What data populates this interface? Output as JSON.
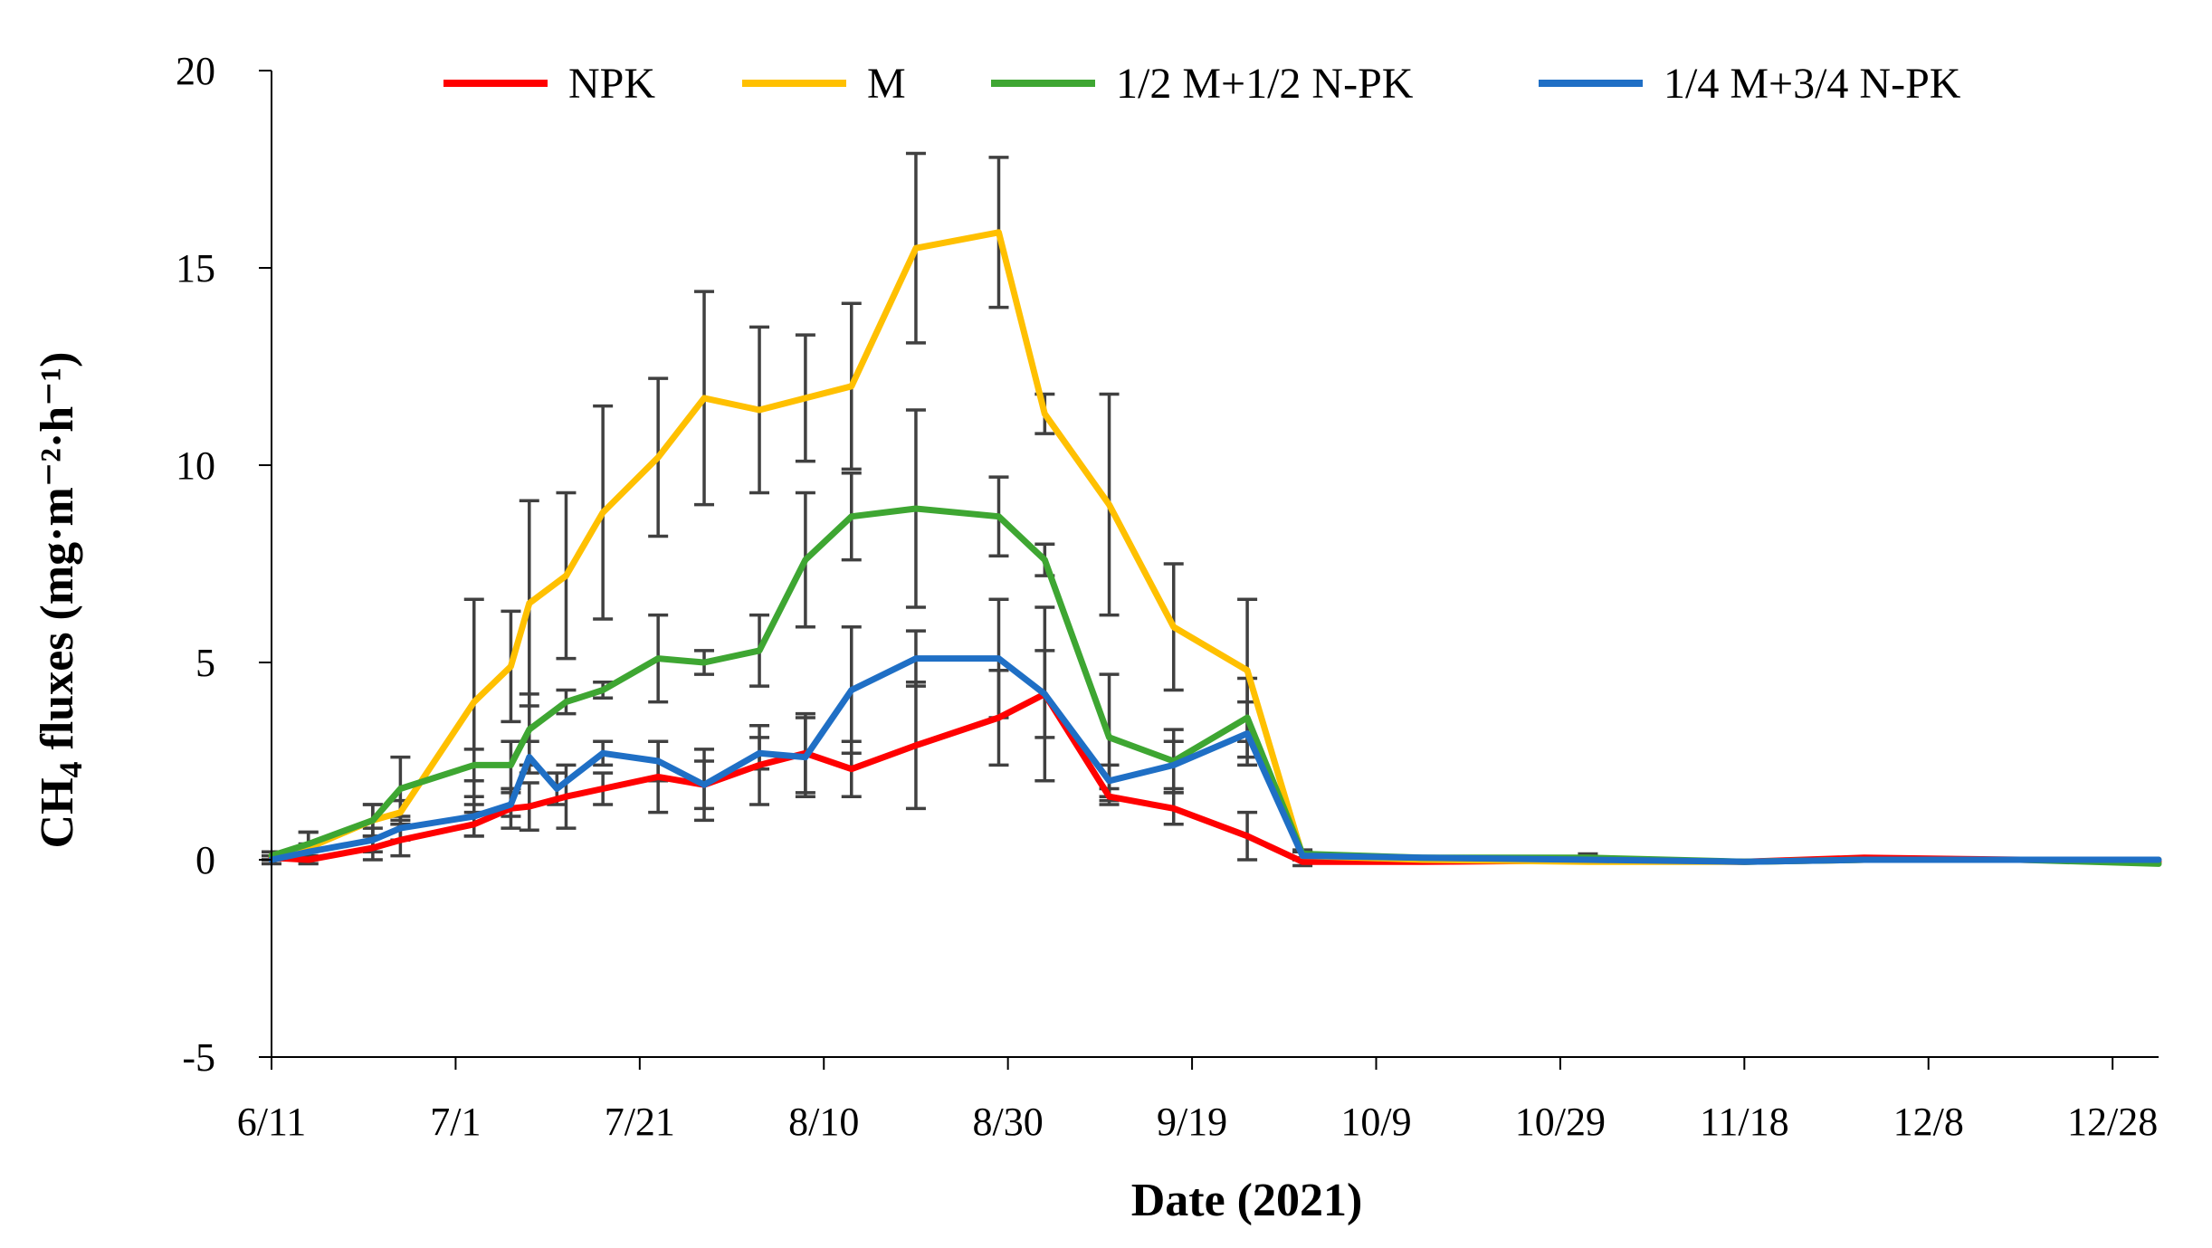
{
  "chart_data": {
    "type": "line",
    "title": "",
    "xlabel": "Date (2021)",
    "ylabel_base": "CH",
    "ylabel_sub": "4",
    "ylabel_rest": " fluxes (mg·m⁻²·h⁻¹)",
    "x_start_day": 0,
    "x_end_day": 205,
    "ylim": [
      -5,
      20
    ],
    "yticks": [
      -5,
      0,
      5,
      10,
      15,
      20
    ],
    "xticks": [
      {
        "day": 0,
        "label": "6/11"
      },
      {
        "day": 20,
        "label": "7/1"
      },
      {
        "day": 40,
        "label": "7/21"
      },
      {
        "day": 60,
        "label": "8/10"
      },
      {
        "day": 80,
        "label": "8/30"
      },
      {
        "day": 100,
        "label": "9/19"
      },
      {
        "day": 120,
        "label": "10/9"
      },
      {
        "day": 140,
        "label": "10/29"
      },
      {
        "day": 160,
        "label": "11/18"
      },
      {
        "day": 180,
        "label": "12/8"
      },
      {
        "day": 200,
        "label": "12/28"
      }
    ],
    "legend_position": "top",
    "series": [
      {
        "name": "NPK",
        "color": "#ff0000",
        "points": [
          {
            "day": 0,
            "y": 0.05,
            "err": 0.15
          },
          {
            "day": 4,
            "y": 0.0,
            "err": 0.1
          },
          {
            "day": 11,
            "y": 0.3,
            "err": 0.3
          },
          {
            "day": 14,
            "y": 0.5,
            "err": 0.4
          },
          {
            "day": 22,
            "y": 0.9,
            "err": 0.3
          },
          {
            "day": 26,
            "y": 1.3,
            "err": 0.5
          },
          {
            "day": 28,
            "y": 1.35,
            "err": 0.6
          },
          {
            "day": 32,
            "y": 1.6,
            "err": 0.8
          },
          {
            "day": 36,
            "y": 1.8,
            "err": 0.4
          },
          {
            "day": 42,
            "y": 2.1,
            "err": 0.9
          },
          {
            "day": 47,
            "y": 1.9,
            "err": 0.9
          },
          {
            "day": 53,
            "y": 2.4,
            "err": 1.0
          },
          {
            "day": 58,
            "y": 2.7,
            "err": 1.0
          },
          {
            "day": 63,
            "y": 2.3,
            "err": 0.7
          },
          {
            "day": 70,
            "y": 2.9,
            "err": 1.6
          },
          {
            "day": 79,
            "y": 3.6,
            "err": 1.2
          },
          {
            "day": 84,
            "y": 4.2,
            "err": 2.2
          },
          {
            "day": 91,
            "y": 1.6,
            "err": 0.2
          },
          {
            "day": 98,
            "y": 1.3,
            "err": 0.4
          },
          {
            "day": 106,
            "y": 0.6,
            "err": 0.6
          },
          {
            "day": 112,
            "y": -0.05,
            "err": 0.1
          },
          {
            "day": 125,
            "y": -0.05,
            "err": 0.05
          },
          {
            "day": 143,
            "y": -0.02,
            "err": 0.05
          },
          {
            "day": 160,
            "y": -0.05,
            "err": 0.05
          },
          {
            "day": 173,
            "y": 0.05,
            "err": 0.05
          },
          {
            "day": 190,
            "y": 0.0,
            "err": 0.05
          },
          {
            "day": 205,
            "y": -0.05,
            "err": 0.05
          }
        ]
      },
      {
        "name": "M",
        "color": "#ffc000",
        "points": [
          {
            "day": 0,
            "y": 0.1,
            "err": 0.1
          },
          {
            "day": 4,
            "y": 0.3,
            "err": 0.4
          },
          {
            "day": 11,
            "y": 1.0,
            "err": 0.4
          },
          {
            "day": 14,
            "y": 1.2,
            "err": 0.3
          },
          {
            "day": 22,
            "y": 4.0,
            "err": 2.6
          },
          {
            "day": 26,
            "y": 4.9,
            "err": 1.4
          },
          {
            "day": 28,
            "y": 6.5,
            "err": 2.6
          },
          {
            "day": 32,
            "y": 7.2,
            "err": 2.1
          },
          {
            "day": 36,
            "y": 8.8,
            "err": 2.7
          },
          {
            "day": 42,
            "y": 10.2,
            "err": 2.0
          },
          {
            "day": 47,
            "y": 11.7,
            "err": 2.7
          },
          {
            "day": 53,
            "y": 11.4,
            "err": 2.1
          },
          {
            "day": 58,
            "y": 11.7,
            "err": 1.6
          },
          {
            "day": 63,
            "y": 12.0,
            "err": 2.1
          },
          {
            "day": 70,
            "y": 15.5,
            "err": 2.4
          },
          {
            "day": 79,
            "y": 15.9,
            "err": 1.9
          },
          {
            "day": 84,
            "y": 11.3,
            "err": 0.5
          },
          {
            "day": 91,
            "y": 9.0,
            "err": 2.8
          },
          {
            "day": 98,
            "y": 5.9,
            "err": 1.6
          },
          {
            "day": 106,
            "y": 4.8,
            "err": 1.8
          },
          {
            "day": 112,
            "y": 0.1,
            "err": 0.1
          },
          {
            "day": 125,
            "y": 0.0,
            "err": 0.05
          },
          {
            "day": 143,
            "y": -0.05,
            "err": 0.05
          },
          {
            "day": 160,
            "y": -0.05,
            "err": 0.05
          },
          {
            "day": 173,
            "y": 0.0,
            "err": 0.05
          },
          {
            "day": 190,
            "y": 0.0,
            "err": 0.05
          },
          {
            "day": 205,
            "y": 0.0,
            "err": 0.05
          }
        ]
      },
      {
        "name": "1/2 M+1/2 N-PK",
        "color": "#3ea632",
        "points": [
          {
            "day": 0,
            "y": 0.1,
            "err": 0.1
          },
          {
            "day": 4,
            "y": 0.4,
            "err": 0.3
          },
          {
            "day": 11,
            "y": 1.0,
            "err": 0.4
          },
          {
            "day": 14,
            "y": 1.8,
            "err": 0.8
          },
          {
            "day": 22,
            "y": 2.4,
            "err": 0.4
          },
          {
            "day": 26,
            "y": 2.4,
            "err": 0.6
          },
          {
            "day": 28,
            "y": 3.3,
            "err": 0.9
          },
          {
            "day": 32,
            "y": 4.0,
            "err": 0.3
          },
          {
            "day": 36,
            "y": 4.3,
            "err": 0.2
          },
          {
            "day": 42,
            "y": 5.1,
            "err": 1.1
          },
          {
            "day": 47,
            "y": 5.0,
            "err": 0.3
          },
          {
            "day": 53,
            "y": 5.3,
            "err": 0.9
          },
          {
            "day": 58,
            "y": 7.6,
            "err": 1.7
          },
          {
            "day": 63,
            "y": 8.7,
            "err": 1.1
          },
          {
            "day": 70,
            "y": 8.9,
            "err": 2.5
          },
          {
            "day": 79,
            "y": 8.7,
            "err": 1.0
          },
          {
            "day": 84,
            "y": 7.6,
            "err": 0.4
          },
          {
            "day": 91,
            "y": 3.1,
            "err": 1.6
          },
          {
            "day": 98,
            "y": 2.5,
            "err": 0.8
          },
          {
            "day": 106,
            "y": 3.6,
            "err": 1.0
          },
          {
            "day": 112,
            "y": 0.15,
            "err": 0.1
          },
          {
            "day": 125,
            "y": 0.05,
            "err": 0.05
          },
          {
            "day": 143,
            "y": 0.05,
            "err": 0.1
          },
          {
            "day": 160,
            "y": -0.05,
            "err": 0.05
          },
          {
            "day": 173,
            "y": 0.0,
            "err": 0.05
          },
          {
            "day": 190,
            "y": 0.0,
            "err": 0.05
          },
          {
            "day": 205,
            "y": -0.1,
            "err": 0.05
          }
        ]
      },
      {
        "name": "1/4 M+3/4 N-PK",
        "color": "#1f6fc5",
        "points": [
          {
            "day": 0,
            "y": 0.0,
            "err": 0.1
          },
          {
            "day": 4,
            "y": 0.2,
            "err": 0.2
          },
          {
            "day": 11,
            "y": 0.5,
            "err": 0.3
          },
          {
            "day": 14,
            "y": 0.8,
            "err": 0.3
          },
          {
            "day": 22,
            "y": 1.1,
            "err": 0.5
          },
          {
            "day": 26,
            "y": 1.4,
            "err": 0.3
          },
          {
            "day": 28,
            "y": 2.6,
            "err": 0.4
          },
          {
            "day": 31,
            "y": 1.8,
            "err": 0.4
          },
          {
            "day": 36,
            "y": 2.7,
            "err": 0.3
          },
          {
            "day": 42,
            "y": 2.5,
            "err": 0.5
          },
          {
            "day": 47,
            "y": 1.9,
            "err": 0.6
          },
          {
            "day": 53,
            "y": 2.7,
            "err": 0.4
          },
          {
            "day": 58,
            "y": 2.6,
            "err": 1.0
          },
          {
            "day": 63,
            "y": 4.3,
            "err": 1.6
          },
          {
            "day": 70,
            "y": 5.1,
            "err": 0.7
          },
          {
            "day": 79,
            "y": 5.1,
            "err": 1.5
          },
          {
            "day": 84,
            "y": 4.2,
            "err": 1.1
          },
          {
            "day": 91,
            "y": 2.0,
            "err": 0.4
          },
          {
            "day": 98,
            "y": 2.4,
            "err": 0.6
          },
          {
            "day": 106,
            "y": 3.2,
            "err": 0.8
          },
          {
            "day": 112,
            "y": 0.1,
            "err": 0.1
          },
          {
            "day": 125,
            "y": 0.05,
            "err": 0.05
          },
          {
            "day": 143,
            "y": 0.0,
            "err": 0.05
          },
          {
            "day": 160,
            "y": -0.05,
            "err": 0.05
          },
          {
            "day": 173,
            "y": 0.0,
            "err": 0.05
          },
          {
            "day": 190,
            "y": 0.0,
            "err": 0.05
          },
          {
            "day": 205,
            "y": 0.0,
            "err": 0.05
          }
        ]
      }
    ]
  }
}
